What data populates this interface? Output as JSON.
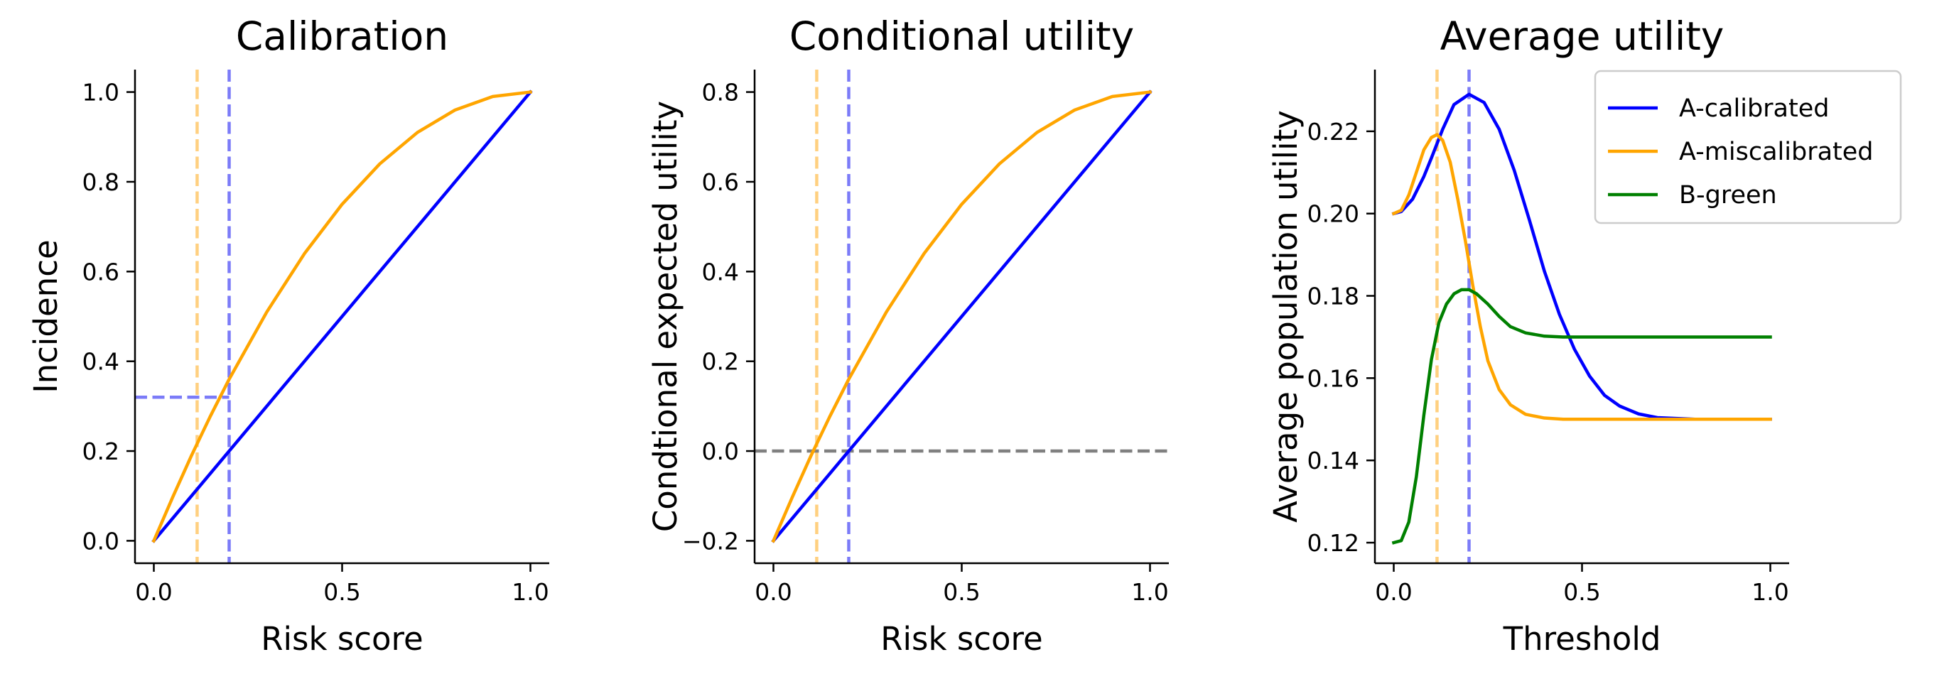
{
  "chart_data": [
    {
      "type": "line",
      "title": "Calibration",
      "xlabel": "Risk score",
      "ylabel": "Incidence",
      "xlim": [
        -0.05,
        1.05
      ],
      "ylim": [
        -0.05,
        1.05
      ],
      "xticks": [
        0.0,
        0.5,
        1.0
      ],
      "xtick_labels": [
        "0.0",
        "0.5",
        "1.0"
      ],
      "yticks": [
        0.0,
        0.2,
        0.4,
        0.6,
        0.8,
        1.0
      ],
      "ytick_labels": [
        "0.0",
        "0.2",
        "0.4",
        "0.6",
        "0.8",
        "1.0"
      ],
      "grid": false,
      "series": [
        {
          "color": "#0000ff",
          "x": [
            0.0,
            0.2,
            0.4,
            0.6,
            0.8,
            1.0
          ],
          "y": [
            0.0,
            0.2,
            0.4,
            0.6,
            0.8,
            1.0
          ]
        },
        {
          "color": "#ffa500",
          "x": [
            0.0,
            0.05,
            0.1,
            0.15,
            0.2,
            0.3,
            0.4,
            0.5,
            0.6,
            0.7,
            0.8,
            0.9,
            1.0
          ],
          "y": [
            0.0,
            0.097,
            0.19,
            0.2775,
            0.36,
            0.51,
            0.64,
            0.75,
            0.84,
            0.91,
            0.96,
            0.99,
            1.0
          ]
        }
      ],
      "reference_lines": [
        {
          "orientation": "vertical",
          "x": 0.115,
          "color": "#ffd080"
        },
        {
          "orientation": "vertical",
          "x": 0.2,
          "color": "#7b7bf8"
        },
        {
          "orientation": "horizontal",
          "y": 0.32,
          "x_range": [
            -0.05,
            0.2
          ],
          "color": "#7b7bf8"
        }
      ]
    },
    {
      "type": "line",
      "title": "Conditional utility",
      "xlabel": "Risk score",
      "ylabel": "Condtional expected utility",
      "xlim": [
        -0.05,
        1.05
      ],
      "ylim": [
        -0.25,
        0.85
      ],
      "xticks": [
        0.0,
        0.5,
        1.0
      ],
      "xtick_labels": [
        "0.0",
        "0.5",
        "1.0"
      ],
      "yticks": [
        -0.2,
        0.0,
        0.2,
        0.4,
        0.6,
        0.8
      ],
      "ytick_labels": [
        "−0.2",
        "0.0",
        "0.2",
        "0.4",
        "0.6",
        "0.8"
      ],
      "grid": false,
      "series": [
        {
          "color": "#0000ff",
          "x": [
            0.0,
            0.2,
            0.4,
            0.6,
            0.8,
            1.0
          ],
          "y": [
            -0.2,
            0.0,
            0.2,
            0.4,
            0.6,
            0.8
          ]
        },
        {
          "color": "#ffa500",
          "x": [
            0.0,
            0.05,
            0.1,
            0.15,
            0.2,
            0.3,
            0.4,
            0.5,
            0.6,
            0.7,
            0.8,
            0.9,
            1.0
          ],
          "y": [
            -0.2,
            -0.103,
            -0.01,
            0.0775,
            0.16,
            0.31,
            0.44,
            0.55,
            0.64,
            0.71,
            0.76,
            0.79,
            0.8
          ]
        }
      ],
      "reference_lines": [
        {
          "orientation": "vertical",
          "x": 0.115,
          "color": "#ffd080"
        },
        {
          "orientation": "vertical",
          "x": 0.2,
          "color": "#7b7bf8"
        },
        {
          "orientation": "horizontal",
          "y": 0.0,
          "x_range": [
            -0.05,
            1.05
          ],
          "color": "#808080"
        }
      ]
    },
    {
      "type": "line",
      "title": "Average utility",
      "xlabel": "Threshold",
      "ylabel": "Average population utility",
      "xlim": [
        -0.05,
        1.05
      ],
      "ylim": [
        0.115,
        0.235
      ],
      "xticks": [
        0.0,
        0.5,
        1.0
      ],
      "xtick_labels": [
        "0.0",
        "0.5",
        "1.0"
      ],
      "yticks": [
        0.12,
        0.14,
        0.16,
        0.18,
        0.2,
        0.22
      ],
      "ytick_labels": [
        "0.12",
        "0.14",
        "0.16",
        "0.18",
        "0.20",
        "0.22"
      ],
      "grid": false,
      "legend": "top-right",
      "series": [
        {
          "name": "A-calibrated",
          "color": "#0000ff",
          "x": [
            0.0,
            0.02,
            0.05,
            0.08,
            0.1,
            0.13,
            0.16,
            0.2,
            0.24,
            0.28,
            0.32,
            0.36,
            0.4,
            0.44,
            0.48,
            0.52,
            0.56,
            0.6,
            0.65,
            0.7,
            0.8,
            0.9,
            1.0
          ],
          "y": [
            0.2,
            0.2005,
            0.2035,
            0.209,
            0.2135,
            0.2205,
            0.2265,
            0.229,
            0.227,
            0.2205,
            0.2105,
            0.1985,
            0.186,
            0.1755,
            0.167,
            0.1605,
            0.1558,
            0.1532,
            0.1513,
            0.1504,
            0.15,
            0.15,
            0.15
          ]
        },
        {
          "name": "A-miscalibrated",
          "color": "#ffa500",
          "x": [
            0.0,
            0.02,
            0.04,
            0.06,
            0.08,
            0.1,
            0.115,
            0.13,
            0.15,
            0.17,
            0.19,
            0.21,
            0.23,
            0.25,
            0.28,
            0.31,
            0.35,
            0.4,
            0.45,
            0.5,
            0.6,
            0.8,
            1.0
          ],
          "y": [
            0.2,
            0.2008,
            0.2045,
            0.21,
            0.2155,
            0.2185,
            0.2192,
            0.2178,
            0.2125,
            0.2035,
            0.1935,
            0.1825,
            0.1725,
            0.1642,
            0.1572,
            0.1535,
            0.1512,
            0.1503,
            0.15,
            0.15,
            0.15,
            0.15,
            0.15
          ]
        },
        {
          "name": "B-green",
          "color": "#008000",
          "x": [
            0.0,
            0.02,
            0.04,
            0.06,
            0.08,
            0.1,
            0.12,
            0.14,
            0.16,
            0.18,
            0.2,
            0.22,
            0.25,
            0.28,
            0.31,
            0.35,
            0.4,
            0.45,
            0.5,
            0.6,
            0.8,
            1.0
          ],
          "y": [
            0.12,
            0.1205,
            0.125,
            0.136,
            0.151,
            0.1645,
            0.1735,
            0.178,
            0.1805,
            0.1815,
            0.1815,
            0.1805,
            0.178,
            0.175,
            0.1725,
            0.171,
            0.1702,
            0.17,
            0.17,
            0.17,
            0.17,
            0.17
          ]
        }
      ],
      "reference_lines": [
        {
          "orientation": "vertical",
          "x": 0.115,
          "color": "#ffd080"
        },
        {
          "orientation": "vertical",
          "x": 0.2,
          "color": "#7b7bf8"
        }
      ]
    }
  ]
}
